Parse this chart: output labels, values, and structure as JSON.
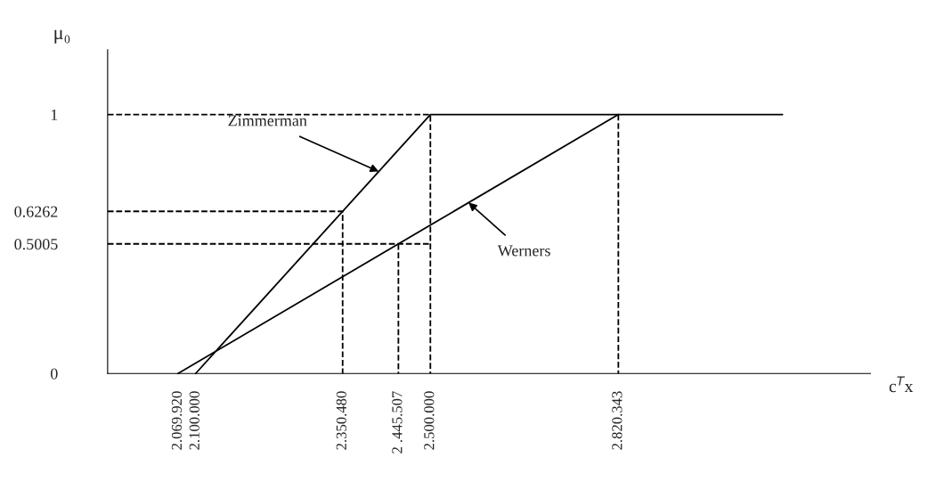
{
  "chart_data": {
    "type": "line",
    "xlabel": "c$^{T}$x",
    "ylabel": "μ₀",
    "xlim": [
      1950000,
      3250000
    ],
    "ylim": [
      0,
      1.25
    ],
    "xticks": [
      {
        "value": 2069920,
        "label": "2.069.920"
      },
      {
        "value": 2100000,
        "label": "2.100.000"
      },
      {
        "value": 2350480,
        "label": "2.350.480"
      },
      {
        "value": 2445507,
        "label": "2 .445.507"
      },
      {
        "value": 2500000,
        "label": "2.500.000"
      },
      {
        "value": 2820343,
        "label": "2.820.343"
      }
    ],
    "yticks": [
      0,
      0.5005,
      0.6262,
      1
    ],
    "grid": false,
    "legend": false,
    "marker": "none",
    "line_style": "solid",
    "series": [
      {
        "color": "#000000",
        "x": [
          2100000,
          2500000,
          3100000
        ],
        "values": [
          0,
          1,
          1
        ]
      },
      {
        "color": "#000000",
        "x": [
          2069920,
          2820343
        ],
        "values": [
          0,
          1
        ]
      },
      {
        "color": "#000000",
        "line_style": "dashed",
        "x": [
          1950000,
          2500000,
          2500000
        ],
        "values": [
          1,
          1,
          0
        ]
      },
      {
        "color": "#000000",
        "line_style": "dashed",
        "x": [
          1950000,
          2350480,
          2350480
        ],
        "values": [
          0.6262,
          0.6262,
          0
        ]
      },
      {
        "color": "#000000",
        "line_style": "dashed",
        "x": [
          1950000,
          2500000
        ],
        "values": [
          0.5005,
          0.5005
        ]
      },
      {
        "color": "#000000",
        "line_style": "dashed",
        "x": [
          2445507,
          2445507
        ],
        "values": [
          0.5005,
          0
        ]
      },
      {
        "color": "#000000",
        "line_style": "dashed",
        "x": [
          2820343,
          2820343
        ],
        "values": [
          1,
          0
        ]
      }
    ],
    "annotations": [
      {
        "text": "Zimmerman",
        "x": 2412000,
        "y": 0.78
      },
      {
        "text": "Werners",
        "x": 2565000,
        "y": 0.66
      }
    ]
  }
}
